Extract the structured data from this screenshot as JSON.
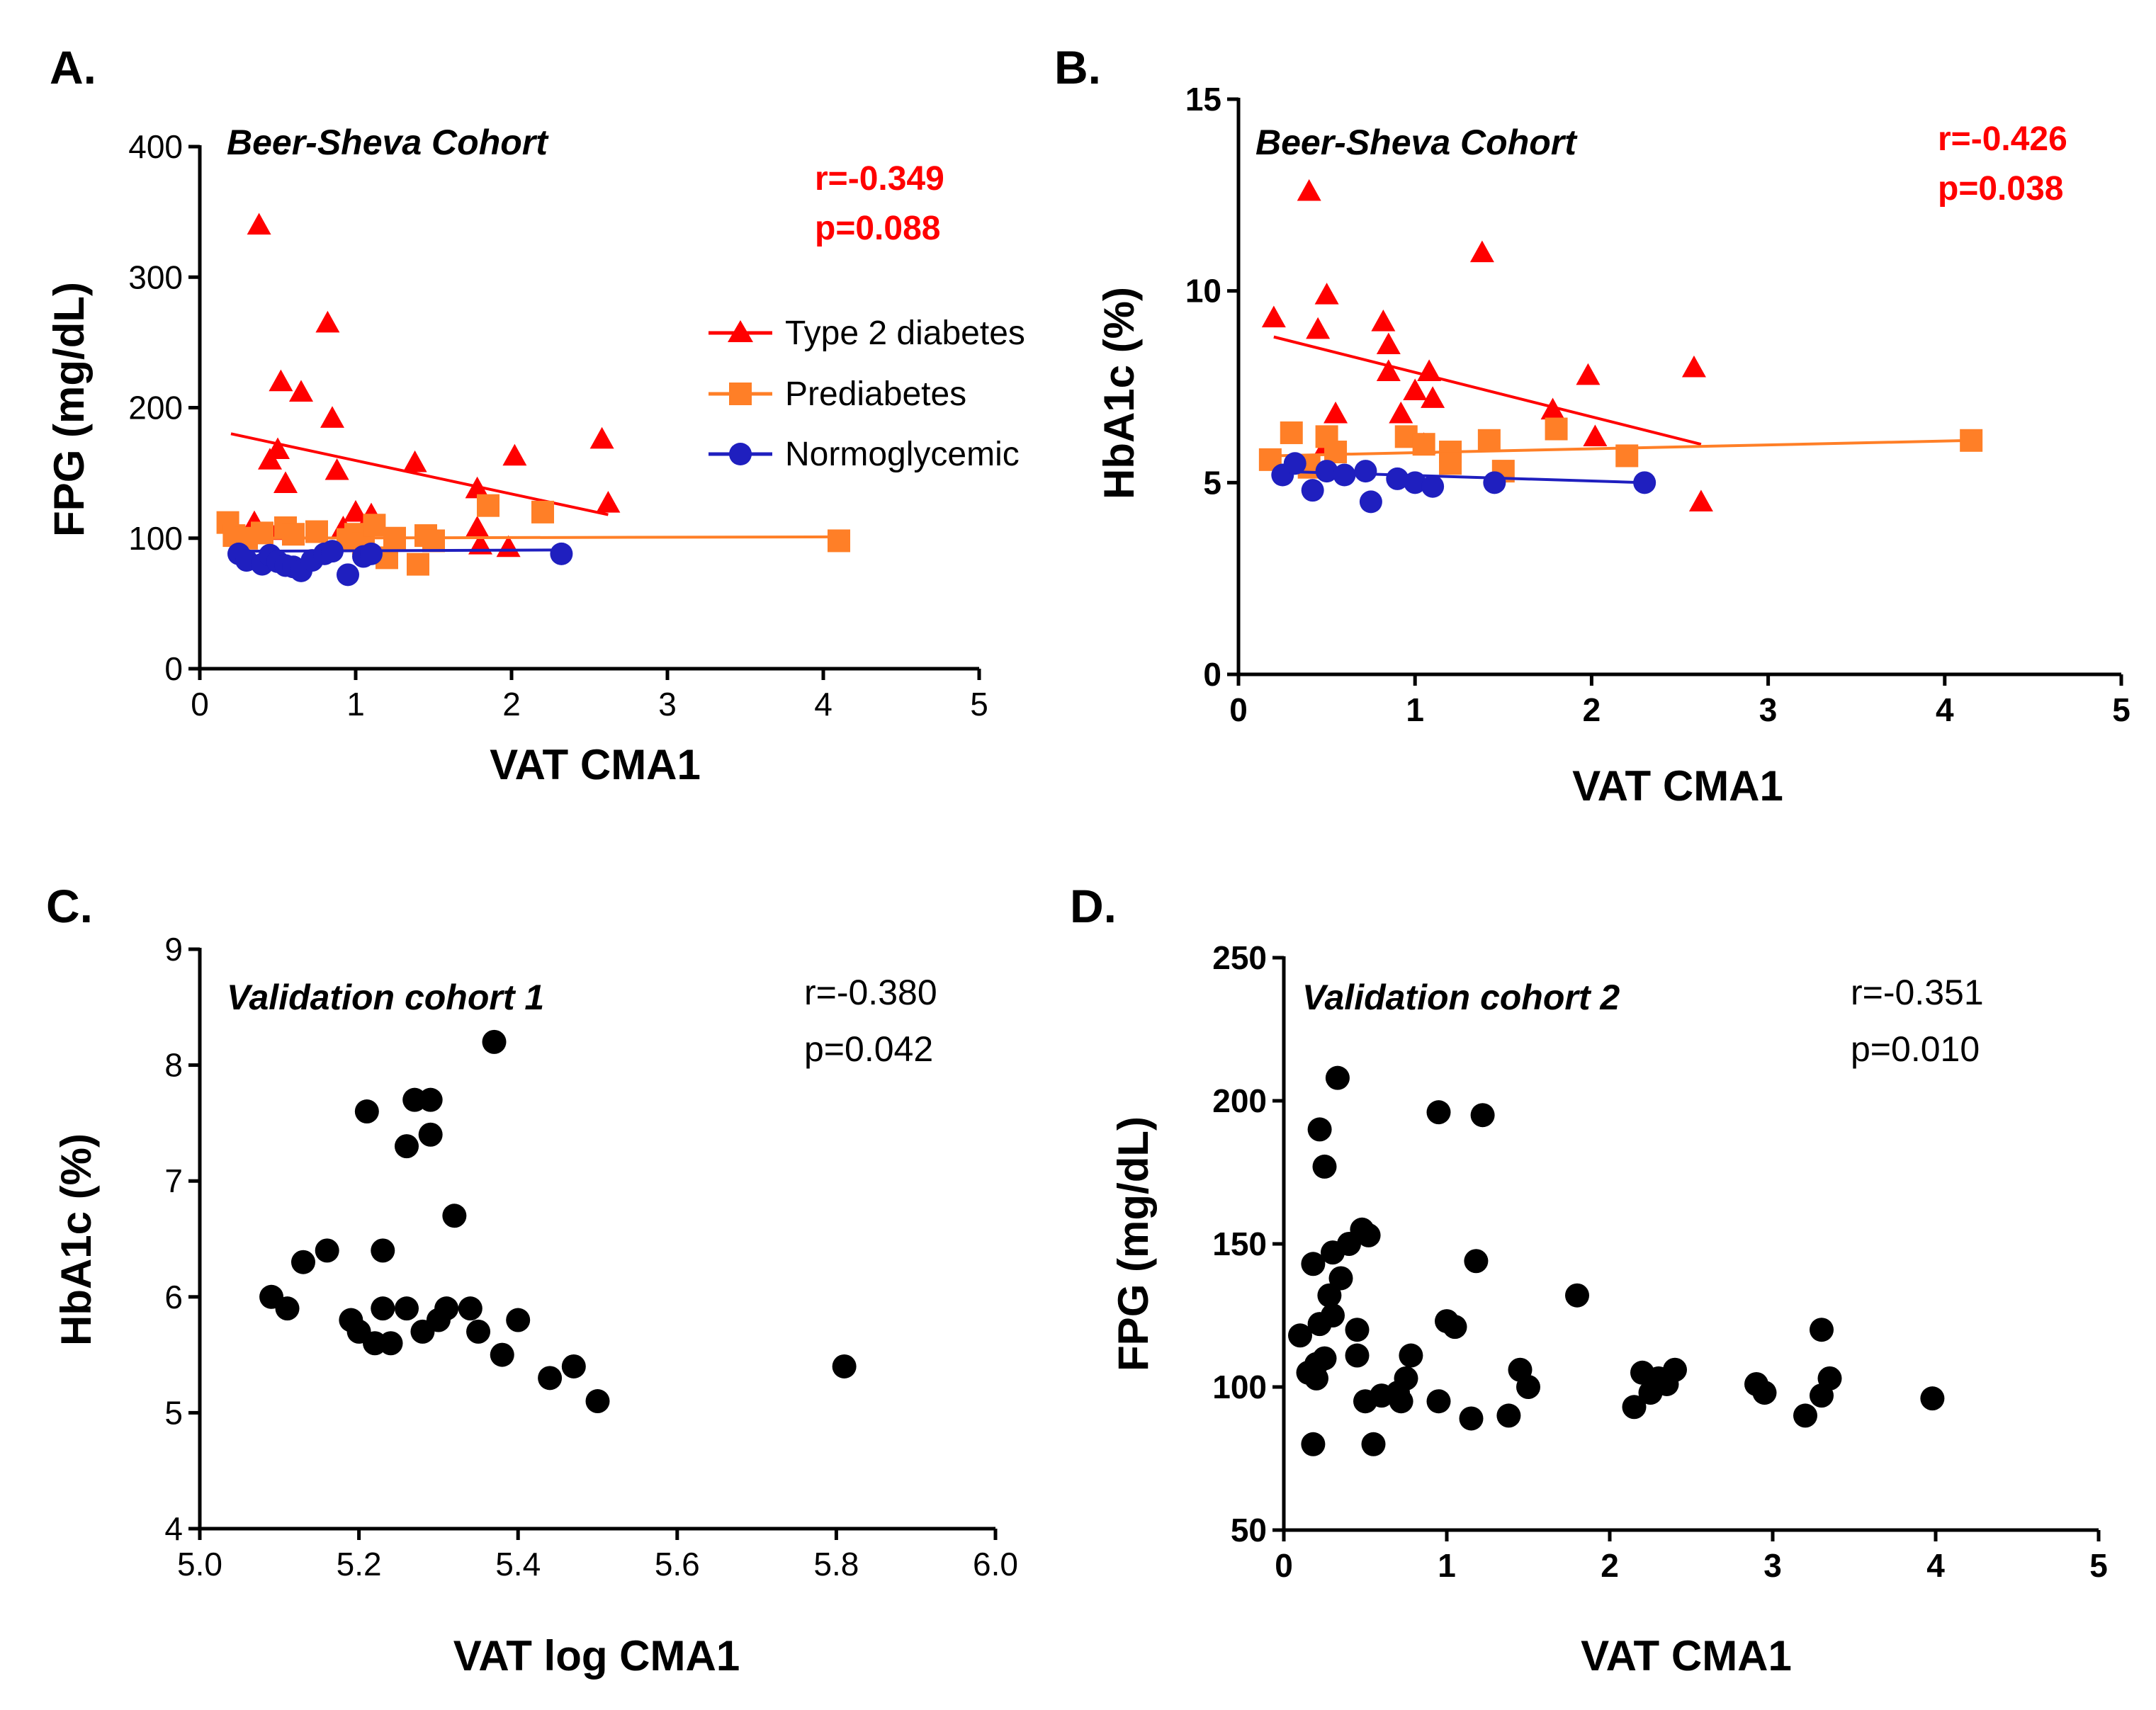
{
  "colors": {
    "t2d": "#ff0000",
    "prediabetes": "#ff7f27",
    "normo": "#1f1fbf",
    "black": "#000000",
    "stat_red": "#ff0000"
  },
  "chart_data": [
    {
      "id": "A",
      "letter": "A.",
      "type": "scatter",
      "cohort": "Beer-Sheva Cohort",
      "stats": [
        "r=-0.349",
        "p=0.088"
      ],
      "stat_style": "red",
      "xlabel": "VAT CMA1",
      "ylabel": "FPG (mg/dL)",
      "xlim": [
        0,
        5
      ],
      "ylim": [
        0,
        400
      ],
      "xticks": [
        0,
        1,
        2,
        3,
        4,
        5
      ],
      "yticks": [
        0,
        100,
        200,
        300,
        400
      ],
      "xtick_labels": [
        "0",
        "1",
        "2",
        "3",
        "4",
        "5"
      ],
      "ytick_labels": [
        "0",
        "100",
        "200",
        "300",
        "400"
      ],
      "legend": [
        {
          "label": "Type 2 diabetes",
          "series": "t2d"
        },
        {
          "label": "Prediabetes",
          "series": "prediabetes"
        },
        {
          "label": "Normoglycemic",
          "series": "normo"
        }
      ],
      "series": [
        {
          "name": "Type 2 diabetes",
          "key": "t2d",
          "marker": "triangle",
          "points": [
            [
              0.38,
              340
            ],
            [
              0.82,
              265
            ],
            [
              0.65,
              212
            ],
            [
              0.52,
              220
            ],
            [
              0.85,
              192
            ],
            [
              0.5,
              168
            ],
            [
              0.45,
              160
            ],
            [
              0.55,
              142
            ],
            [
              0.88,
              152
            ],
            [
              1.38,
              158
            ],
            [
              2.02,
              163
            ],
            [
              2.58,
              176
            ],
            [
              2.62,
              127
            ],
            [
              1.78,
              138
            ],
            [
              1.78,
              108
            ],
            [
              1.0,
              120
            ],
            [
              1.1,
              118
            ],
            [
              0.92,
              108
            ],
            [
              0.35,
              112
            ],
            [
              0.5,
              106
            ],
            [
              1.8,
              95
            ],
            [
              1.98,
              93
            ]
          ],
          "fit": [
            [
              0.2,
              180
            ],
            [
              2.62,
              118
            ]
          ]
        },
        {
          "name": "Prediabetes",
          "key": "prediabetes",
          "marker": "square",
          "points": [
            [
              0.18,
              112
            ],
            [
              0.22,
              102
            ],
            [
              0.3,
              100
            ],
            [
              0.4,
              104
            ],
            [
              0.55,
              108
            ],
            [
              0.6,
              103
            ],
            [
              0.75,
              105
            ],
            [
              0.95,
              99
            ],
            [
              1.0,
              103
            ],
            [
              1.05,
              96
            ],
            [
              1.12,
              110
            ],
            [
              1.2,
              85
            ],
            [
              1.25,
              100
            ],
            [
              1.45,
              102
            ],
            [
              1.5,
              98
            ],
            [
              1.4,
              80
            ],
            [
              1.85,
              125
            ],
            [
              2.2,
              120
            ],
            [
              4.1,
              98
            ]
          ],
          "fit": [
            [
              0.2,
              100
            ],
            [
              4.1,
              101
            ]
          ]
        },
        {
          "name": "Normoglycemic",
          "key": "normo",
          "marker": "circle",
          "points": [
            [
              0.25,
              88
            ],
            [
              0.3,
              83
            ],
            [
              0.4,
              80
            ],
            [
              0.45,
              87
            ],
            [
              0.5,
              82
            ],
            [
              0.55,
              79
            ],
            [
              0.6,
              78
            ],
            [
              0.65,
              75
            ],
            [
              0.72,
              83
            ],
            [
              0.8,
              88
            ],
            [
              0.85,
              90
            ],
            [
              0.95,
              72
            ],
            [
              1.05,
              86
            ],
            [
              1.1,
              88
            ],
            [
              2.32,
              88
            ]
          ],
          "fit": [
            [
              0.2,
              90
            ],
            [
              2.32,
              91
            ]
          ]
        }
      ]
    },
    {
      "id": "B",
      "letter": "B.",
      "type": "scatter",
      "cohort": "Beer-Sheva Cohort",
      "stats": [
        "r=-0.426",
        "p=0.038"
      ],
      "stat_style": "red",
      "xlabel": "VAT CMA1",
      "ylabel": "HbA1c (%)",
      "xlim": [
        0,
        5
      ],
      "ylim": [
        0,
        15
      ],
      "xticks": [
        0,
        1,
        2,
        3,
        4,
        5
      ],
      "yticks": [
        0,
        5,
        10,
        15
      ],
      "xtick_labels": [
        "0",
        "1",
        "2",
        "3",
        "4",
        "5"
      ],
      "ytick_labels": [
        "0",
        "5",
        "10",
        "15"
      ],
      "legend": [],
      "series": [
        {
          "name": "Type 2 diabetes",
          "key": "t2d",
          "marker": "triangle",
          "points": [
            [
              0.4,
              12.6
            ],
            [
              1.38,
              11.0
            ],
            [
              0.2,
              9.3
            ],
            [
              0.5,
              9.9
            ],
            [
              0.45,
              9.0
            ],
            [
              0.82,
              9.2
            ],
            [
              0.85,
              8.6
            ],
            [
              0.85,
              7.9
            ],
            [
              1.08,
              7.9
            ],
            [
              1.0,
              7.4
            ],
            [
              1.1,
              7.2
            ],
            [
              1.98,
              7.8
            ],
            [
              2.58,
              8.0
            ],
            [
              1.78,
              6.9
            ],
            [
              0.92,
              6.8
            ],
            [
              0.55,
              6.8
            ],
            [
              2.02,
              6.2
            ],
            [
              2.62,
              4.5
            ],
            [
              1.05,
              6.0
            ],
            [
              0.5,
              6.0
            ]
          ],
          "fit": [
            [
              0.2,
              8.8
            ],
            [
              2.62,
              6.0
            ]
          ]
        },
        {
          "name": "Prediabetes",
          "key": "prediabetes",
          "marker": "square",
          "points": [
            [
              0.18,
              5.6
            ],
            [
              0.3,
              6.3
            ],
            [
              0.4,
              5.4
            ],
            [
              0.5,
              6.2
            ],
            [
              0.55,
              5.8
            ],
            [
              0.95,
              6.2
            ],
            [
              1.05,
              6.0
            ],
            [
              1.2,
              5.8
            ],
            [
              1.2,
              5.5
            ],
            [
              1.42,
              6.1
            ],
            [
              1.5,
              5.3
            ],
            [
              1.8,
              6.4
            ],
            [
              2.2,
              5.7
            ],
            [
              4.15,
              6.1
            ]
          ],
          "fit": [
            [
              0.2,
              5.7
            ],
            [
              4.15,
              6.1
            ]
          ]
        },
        {
          "name": "Normoglycemic",
          "key": "normo",
          "marker": "circle",
          "points": [
            [
              0.25,
              5.2
            ],
            [
              0.32,
              5.5
            ],
            [
              0.42,
              4.8
            ],
            [
              0.5,
              5.3
            ],
            [
              0.6,
              5.2
            ],
            [
              0.72,
              5.3
            ],
            [
              0.75,
              4.5
            ],
            [
              0.9,
              5.1
            ],
            [
              1.0,
              5.0
            ],
            [
              1.1,
              4.9
            ],
            [
              1.45,
              5.0
            ],
            [
              2.3,
              5.0
            ]
          ],
          "fit": [
            [
              0.2,
              5.3
            ],
            [
              2.3,
              5.0
            ]
          ]
        }
      ]
    },
    {
      "id": "C",
      "letter": "C.",
      "type": "scatter",
      "cohort": "Validation  cohort 1",
      "stats": [
        "r=-0.380",
        "p=0.042"
      ],
      "stat_style": "black",
      "xlabel": "VAT log CMA1",
      "ylabel": "HbA1c (%)",
      "xlim": [
        5.0,
        6.0
      ],
      "ylim": [
        4,
        9
      ],
      "xticks": [
        5.0,
        5.2,
        5.4,
        5.6,
        5.8,
        6.0
      ],
      "yticks": [
        4,
        5,
        6,
        7,
        8,
        9
      ],
      "xtick_labels": [
        "5.0",
        "5.2",
        "5.4",
        "5.6",
        "5.8",
        "6.0"
      ],
      "ytick_labels": [
        "4",
        "5",
        "6",
        "7",
        "8",
        "9"
      ],
      "legend": [],
      "series": [
        {
          "name": "Validation cohort 1",
          "key": "black",
          "marker": "circle",
          "points": [
            [
              5.09,
              6.0
            ],
            [
              5.11,
              5.9
            ],
            [
              5.13,
              6.3
            ],
            [
              5.16,
              6.4
            ],
            [
              5.19,
              5.8
            ],
            [
              5.2,
              5.7
            ],
            [
              5.21,
              7.6
            ],
            [
              5.22,
              5.6
            ],
            [
              5.23,
              5.9
            ],
            [
              5.23,
              6.4
            ],
            [
              5.24,
              5.6
            ],
            [
              5.26,
              5.9
            ],
            [
              5.26,
              7.3
            ],
            [
              5.27,
              7.7
            ],
            [
              5.28,
              5.7
            ],
            [
              5.29,
              7.7
            ],
            [
              5.29,
              7.4
            ],
            [
              5.3,
              5.8
            ],
            [
              5.31,
              5.9
            ],
            [
              5.32,
              6.7
            ],
            [
              5.34,
              5.9
            ],
            [
              5.35,
              5.7
            ],
            [
              5.37,
              8.2
            ],
            [
              5.38,
              5.5
            ],
            [
              5.4,
              5.8
            ],
            [
              5.44,
              5.3
            ],
            [
              5.47,
              5.4
            ],
            [
              5.5,
              5.1
            ],
            [
              5.81,
              5.4
            ]
          ],
          "fit": null
        }
      ]
    },
    {
      "id": "D",
      "letter": "D.",
      "type": "scatter",
      "cohort": "Validation  cohort 2",
      "stats": [
        "r=-0.351",
        "p=0.010"
      ],
      "stat_style": "black",
      "xlabel": "VAT  CMA1",
      "ylabel": "FPG (mg/dL)",
      "xlim": [
        0,
        5
      ],
      "ylim": [
        50,
        250
      ],
      "xticks": [
        0,
        1,
        2,
        3,
        4,
        5
      ],
      "yticks": [
        50,
        100,
        150,
        200,
        250
      ],
      "xtick_labels": [
        "0",
        "1",
        "2",
        "3",
        "4",
        "5"
      ],
      "ytick_labels": [
        "50",
        "100",
        "150",
        "200",
        "250"
      ],
      "legend": [],
      "series": [
        {
          "name": "Validation cohort 2",
          "key": "black",
          "marker": "circle",
          "points": [
            [
              0.1,
              118
            ],
            [
              0.15,
              105
            ],
            [
              0.18,
              143
            ],
            [
              0.18,
              80
            ],
            [
              0.2,
              108
            ],
            [
              0.2,
              103
            ],
            [
              0.22,
              122
            ],
            [
              0.22,
              190
            ],
            [
              0.25,
              177
            ],
            [
              0.25,
              110
            ],
            [
              0.28,
              132
            ],
            [
              0.3,
              125
            ],
            [
              0.3,
              147
            ],
            [
              0.33,
              208
            ],
            [
              0.35,
              138
            ],
            [
              0.4,
              150
            ],
            [
              0.45,
              120
            ],
            [
              0.45,
              111
            ],
            [
              0.48,
              155
            ],
            [
              0.5,
              95
            ],
            [
              0.52,
              153
            ],
            [
              0.55,
              80
            ],
            [
              0.6,
              97
            ],
            [
              0.7,
              98
            ],
            [
              0.72,
              95
            ],
            [
              0.75,
              103
            ],
            [
              0.78,
              111
            ],
            [
              0.95,
              196
            ],
            [
              0.95,
              95
            ],
            [
              1.0,
              123
            ],
            [
              1.05,
              121
            ],
            [
              1.15,
              89
            ],
            [
              1.18,
              144
            ],
            [
              1.22,
              195
            ],
            [
              1.38,
              90
            ],
            [
              1.45,
              106
            ],
            [
              1.5,
              100
            ],
            [
              1.8,
              132
            ],
            [
              2.15,
              93
            ],
            [
              2.2,
              105
            ],
            [
              2.25,
              98
            ],
            [
              2.3,
              103
            ],
            [
              2.35,
              101
            ],
            [
              2.4,
              106
            ],
            [
              2.9,
              101
            ],
            [
              2.95,
              98
            ],
            [
              3.2,
              90
            ],
            [
              3.3,
              97
            ],
            [
              3.3,
              120
            ],
            [
              3.35,
              103
            ],
            [
              3.98,
              96
            ]
          ],
          "fit": null
        }
      ]
    }
  ]
}
